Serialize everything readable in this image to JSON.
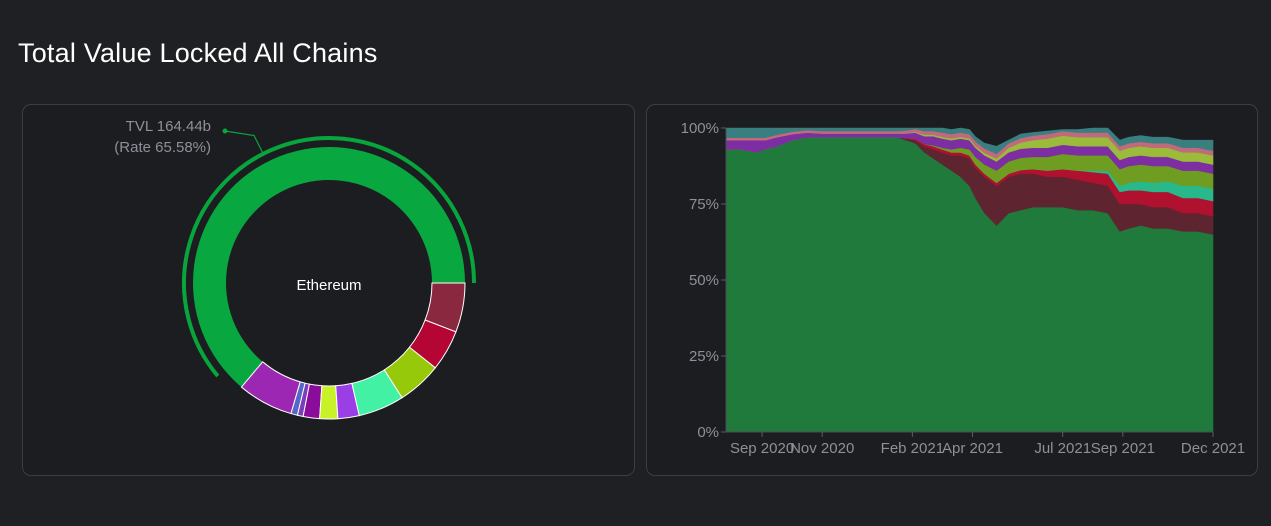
{
  "page": {
    "title": "Total Value Locked All Chains"
  },
  "chart_data": [
    {
      "type": "pie",
      "center_label": "Ethereum",
      "tooltip": {
        "tvl_text": "TVL 164.44b",
        "rate_text": "(Rate 65.58%)"
      },
      "highlight_color": "#08a53c",
      "slices": [
        {
          "value": 65.58,
          "color": "#08a73f"
        },
        {
          "value": 6.8,
          "color": "#9b27b2"
        },
        {
          "value": 0.8,
          "color": "#5567c7"
        },
        {
          "value": 0.7,
          "color": "#7a3fb8"
        },
        {
          "value": 2.0,
          "color": "#8b0c9a"
        },
        {
          "value": 2.2,
          "color": "#c9f127"
        },
        {
          "value": 2.6,
          "color": "#9c3ee6"
        },
        {
          "value": 5.6,
          "color": "#43f1a4"
        },
        {
          "value": 5.4,
          "color": "#95c90a"
        },
        {
          "value": 5.0,
          "color": "#b50535"
        },
        {
          "value": 6.0,
          "color": "#8a2840"
        }
      ]
    },
    {
      "type": "area",
      "stacked": "percent",
      "y_ticks": [
        "0%",
        "25%",
        "50%",
        "75%",
        "100%"
      ],
      "ylim": [
        0,
        100
      ],
      "x_ticks": [
        {
          "label": "Sep 2020",
          "month": 2
        },
        {
          "label": "Nov 2020",
          "month": 4
        },
        {
          "label": "Feb 2021",
          "month": 7
        },
        {
          "label": "Apr 2021",
          "month": 9
        },
        {
          "label": "Jul 2021",
          "month": 12
        },
        {
          "label": "Sep 2021",
          "month": 14
        },
        {
          "label": "Dec 2021",
          "month": 17
        }
      ],
      "x_range": [
        0.8,
        17.0
      ],
      "x": [
        0.8,
        1.3,
        1.8,
        2.1,
        2.5,
        3.0,
        3.5,
        4.0,
        4.5,
        5.0,
        5.5,
        6.0,
        6.5,
        6.8,
        7.1,
        7.4,
        7.7,
        8.0,
        8.3,
        8.6,
        8.9,
        9.1,
        9.4,
        9.8,
        10.2,
        10.6,
        11.0,
        11.5,
        12.0,
        12.5,
        13.0,
        13.5,
        13.9,
        14.2,
        14.6,
        15.0,
        15.5,
        16.0,
        16.5,
        17.0
      ],
      "series": [
        {
          "color": "#1f7a3c",
          "values": [
            93,
            93,
            92,
            93,
            94,
            96,
            97,
            97,
            97,
            97,
            97,
            97,
            97,
            96,
            95,
            92,
            90,
            88,
            86,
            84,
            81,
            77,
            72,
            68,
            72,
            73,
            74,
            74,
            74,
            73,
            73,
            72,
            66,
            67,
            68,
            67,
            67,
            66,
            66,
            65
          ]
        },
        {
          "color": "#5e2530",
          "values": [
            0,
            0,
            0,
            0,
            0,
            0,
            0,
            0,
            0,
            0,
            0,
            0,
            0,
            0.5,
            1,
            2,
            3,
            4,
            5,
            7,
            9,
            10,
            12,
            13,
            12,
            12,
            11,
            10,
            10,
            10,
            9,
            9,
            9,
            8,
            7,
            7,
            7,
            6,
            6,
            6
          ]
        },
        {
          "color": "#b0112e",
          "values": [
            0,
            0,
            0,
            0,
            0,
            0,
            0,
            0,
            0,
            0,
            0,
            0,
            0,
            0.2,
            0.5,
            0.8,
            1,
            1,
            1,
            1,
            1,
            1,
            1,
            1,
            1,
            1.2,
            1.5,
            2,
            2.5,
            3,
            3.5,
            4,
            4,
            4.5,
            4.5,
            5,
            5,
            5,
            5,
            5
          ]
        },
        {
          "color": "#28b889",
          "values": [
            0,
            0,
            0,
            0,
            0,
            0,
            0,
            0,
            0,
            0,
            0,
            0,
            0,
            0,
            0,
            0,
            0,
            0,
            0,
            0,
            0,
            0,
            0,
            0,
            0,
            0,
            0,
            0,
            0,
            0,
            0.5,
            1,
            2,
            2.5,
            3,
            3,
            3.5,
            4,
            4,
            4
          ]
        },
        {
          "color": "#6f9d22",
          "values": [
            0,
            0,
            0,
            0,
            0,
            0,
            0,
            0,
            0,
            0,
            0,
            0,
            0,
            0,
            0,
            0,
            0.3,
            0.5,
            1,
            1.5,
            2,
            2.5,
            3,
            4,
            4,
            4,
            4,
            4.5,
            5,
            5,
            5,
            5,
            5.5,
            5.5,
            5.5,
            5.5,
            5,
            5,
            5,
            5
          ]
        },
        {
          "color": "#7c2ea2",
          "values": [
            3,
            3,
            4,
            3,
            3,
            2,
            1.5,
            1.2,
            1.2,
            1.2,
            1.2,
            1.2,
            1.2,
            1.5,
            2,
            2.5,
            3,
            3,
            3,
            3,
            3,
            3,
            3,
            3,
            3,
            3,
            3,
            3,
            3,
            3,
            3,
            3,
            3,
            3,
            3,
            3,
            3,
            3,
            3,
            3
          ]
        },
        {
          "color": "#9bbb3a",
          "values": [
            0,
            0,
            0,
            0,
            0,
            0,
            0,
            0,
            0,
            0,
            0,
            0,
            0,
            0,
            0.2,
            0.5,
            0.5,
            0.6,
            0.6,
            0.6,
            0.6,
            0.6,
            0.8,
            1,
            1.5,
            2,
            2.5,
            3,
            3,
            3,
            3,
            3,
            3,
            3,
            3,
            3,
            3,
            3,
            3,
            3
          ]
        },
        {
          "color": "#c06a7c",
          "values": [
            0.8,
            0.8,
            0.8,
            0.8,
            0.8,
            0.8,
            0.8,
            0.8,
            0.8,
            0.8,
            0.8,
            0.8,
            0.8,
            1,
            1,
            1.2,
            1.2,
            1.4,
            1.4,
            1.4,
            1.4,
            1.5,
            1.5,
            1.5,
            1.5,
            1.5,
            1.5,
            1.5,
            1.5,
            1.5,
            1.5,
            1.5,
            1.5,
            1.5,
            1.5,
            1.5,
            1.5,
            1.5,
            1.5,
            1.5
          ]
        },
        {
          "color": "#3a7f80",
          "values": [
            3.2,
            3.2,
            3.2,
            3.2,
            2.2,
            1.2,
            0.7,
            1,
            1,
            1,
            1,
            1,
            1,
            1,
            1.3,
            1.5,
            1.5,
            1.5,
            1.5,
            1.5,
            1.5,
            1.5,
            1.7,
            2.5,
            1,
            1.3,
            1,
            1,
            0.5,
            1,
            1.5,
            1.5,
            2,
            2,
            2,
            2,
            2,
            2.5,
            2.5,
            3.5
          ]
        }
      ]
    }
  ]
}
